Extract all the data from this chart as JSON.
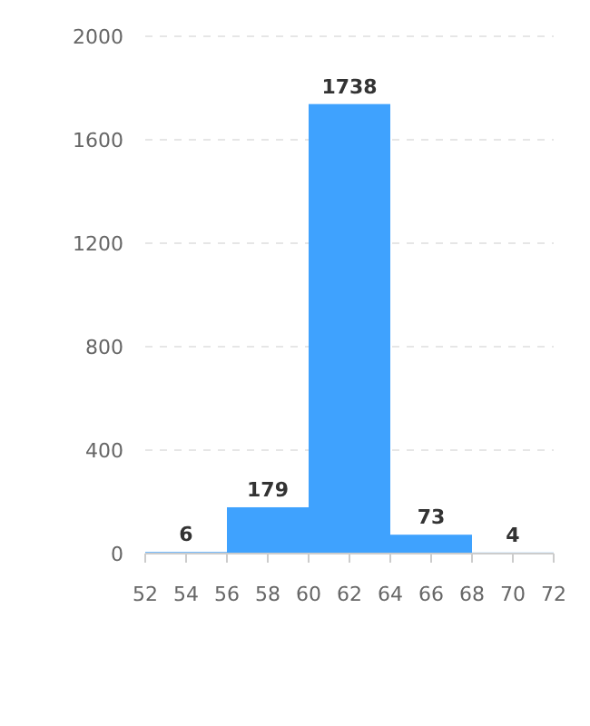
{
  "chart_data": {
    "type": "histogram",
    "bins": [
      52,
      56,
      60,
      64,
      68,
      72
    ],
    "values": [
      6,
      179,
      1738,
      73,
      4
    ],
    "color": "#3fa2fe",
    "xlim": [
      52,
      72
    ],
    "xticks": [
      52,
      54,
      56,
      58,
      60,
      62,
      64,
      66,
      68,
      70,
      72
    ],
    "ylim": [
      0,
      2000
    ],
    "yticks": [
      0,
      400,
      800,
      1200,
      1600,
      2000
    ],
    "grid": "y",
    "data_labels": true
  }
}
